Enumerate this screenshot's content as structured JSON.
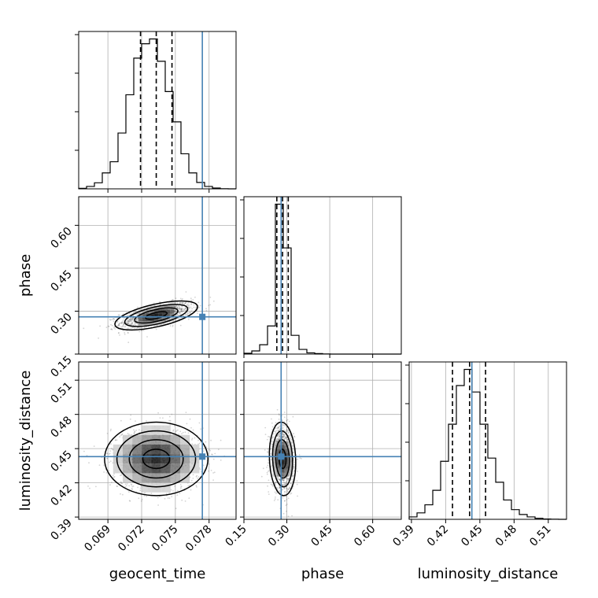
{
  "chart_data": {
    "type": "corner",
    "parameters": [
      "geocent_time",
      "phase",
      "luminosity_distance"
    ],
    "truth": {
      "geocent_time": 0.0774,
      "phase": 0.28,
      "luminosity_distance": 0.443
    },
    "quantiles": {
      "geocent_time": [
        0.0719,
        0.0733,
        0.0747
      ],
      "phase": [
        0.265,
        0.285,
        0.305
      ],
      "luminosity_distance": [
        0.426,
        0.441,
        0.455
      ]
    },
    "ranges": {
      "geocent_time": [
        0.0664,
        0.0804
      ],
      "phase": [
        0.15,
        0.7
      ],
      "luminosity_distance": [
        0.388,
        0.526
      ]
    },
    "ticks": {
      "geocent_time": {
        "values": [
          0.069,
          0.072,
          0.075,
          0.078
        ],
        "labels": [
          "0.069",
          "0.072",
          "0.075",
          "0.078"
        ]
      },
      "phase": {
        "values": [
          0.15,
          0.3,
          0.45,
          0.6
        ],
        "labels": [
          "0.15",
          "0.30",
          "0.45",
          "0.60"
        ]
      },
      "luminosity_distance": {
        "values": [
          0.39,
          0.42,
          0.45,
          0.48,
          0.51
        ],
        "labels": [
          "0.39",
          "0.42",
          "0.45",
          "0.48",
          "0.51"
        ]
      }
    },
    "histograms": {
      "geocent_time": {
        "bin_start": 0.0664,
        "bin_width": 0.0007,
        "counts": [
          0.3,
          1.5,
          3.8,
          10,
          17,
          35,
          59,
          82,
          91,
          94,
          80,
          61,
          42,
          22,
          10,
          4,
          1.5,
          0.5,
          0.1,
          0
        ]
      },
      "phase": {
        "bin_start": 0.15,
        "bin_width": 0.0275,
        "counts": [
          0.5,
          2,
          6,
          18,
          96,
          68,
          12,
          3,
          0.8,
          0.3,
          0.1,
          0,
          0,
          0,
          0,
          0,
          0,
          0,
          0,
          0
        ]
      },
      "luminosity_distance": {
        "bin_start": 0.388,
        "bin_width": 0.0069,
        "counts": [
          1.5,
          4,
          9,
          18,
          36,
          59,
          83,
          93,
          79,
          59,
          38,
          23,
          12,
          6,
          3,
          1.5,
          0.6,
          0.2,
          0.1,
          0
        ]
      }
    },
    "joint": {
      "phase_vs_geocent_time": {
        "center": [
          0.0733,
          0.285
        ],
        "sigma": [
          0.0016,
          0.022
        ],
        "rho": 0.6
      },
      "luminosity_distance_vs_geocent_time": {
        "center": [
          0.0733,
          0.441
        ],
        "sigma": [
          0.002,
          0.014
        ],
        "rho": 0.0
      },
      "luminosity_distance_vs_phase": {
        "center": [
          0.285,
          0.441
        ],
        "sigma": [
          0.02,
          0.014
        ],
        "rho": -0.1
      }
    },
    "grid": true,
    "colors": {
      "truth": "#4682b4",
      "hist": "#000000",
      "scatter": "#555555"
    }
  }
}
